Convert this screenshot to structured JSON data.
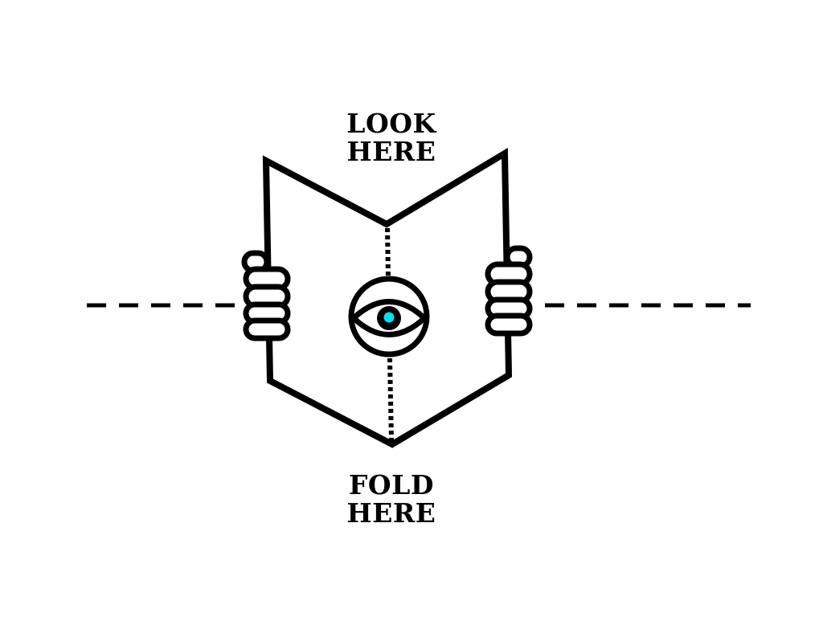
{
  "instructions": {
    "top_line_1": "LOOK",
    "top_line_2": "HERE",
    "bottom_line_1": "FOLD",
    "bottom_line_2": "HERE"
  },
  "colors": {
    "ink": "#000000",
    "background": "#ffffff",
    "iris": "#00e0ee"
  },
  "icons": [
    "open-book-icon",
    "eye-icon",
    "hand-icon"
  ]
}
